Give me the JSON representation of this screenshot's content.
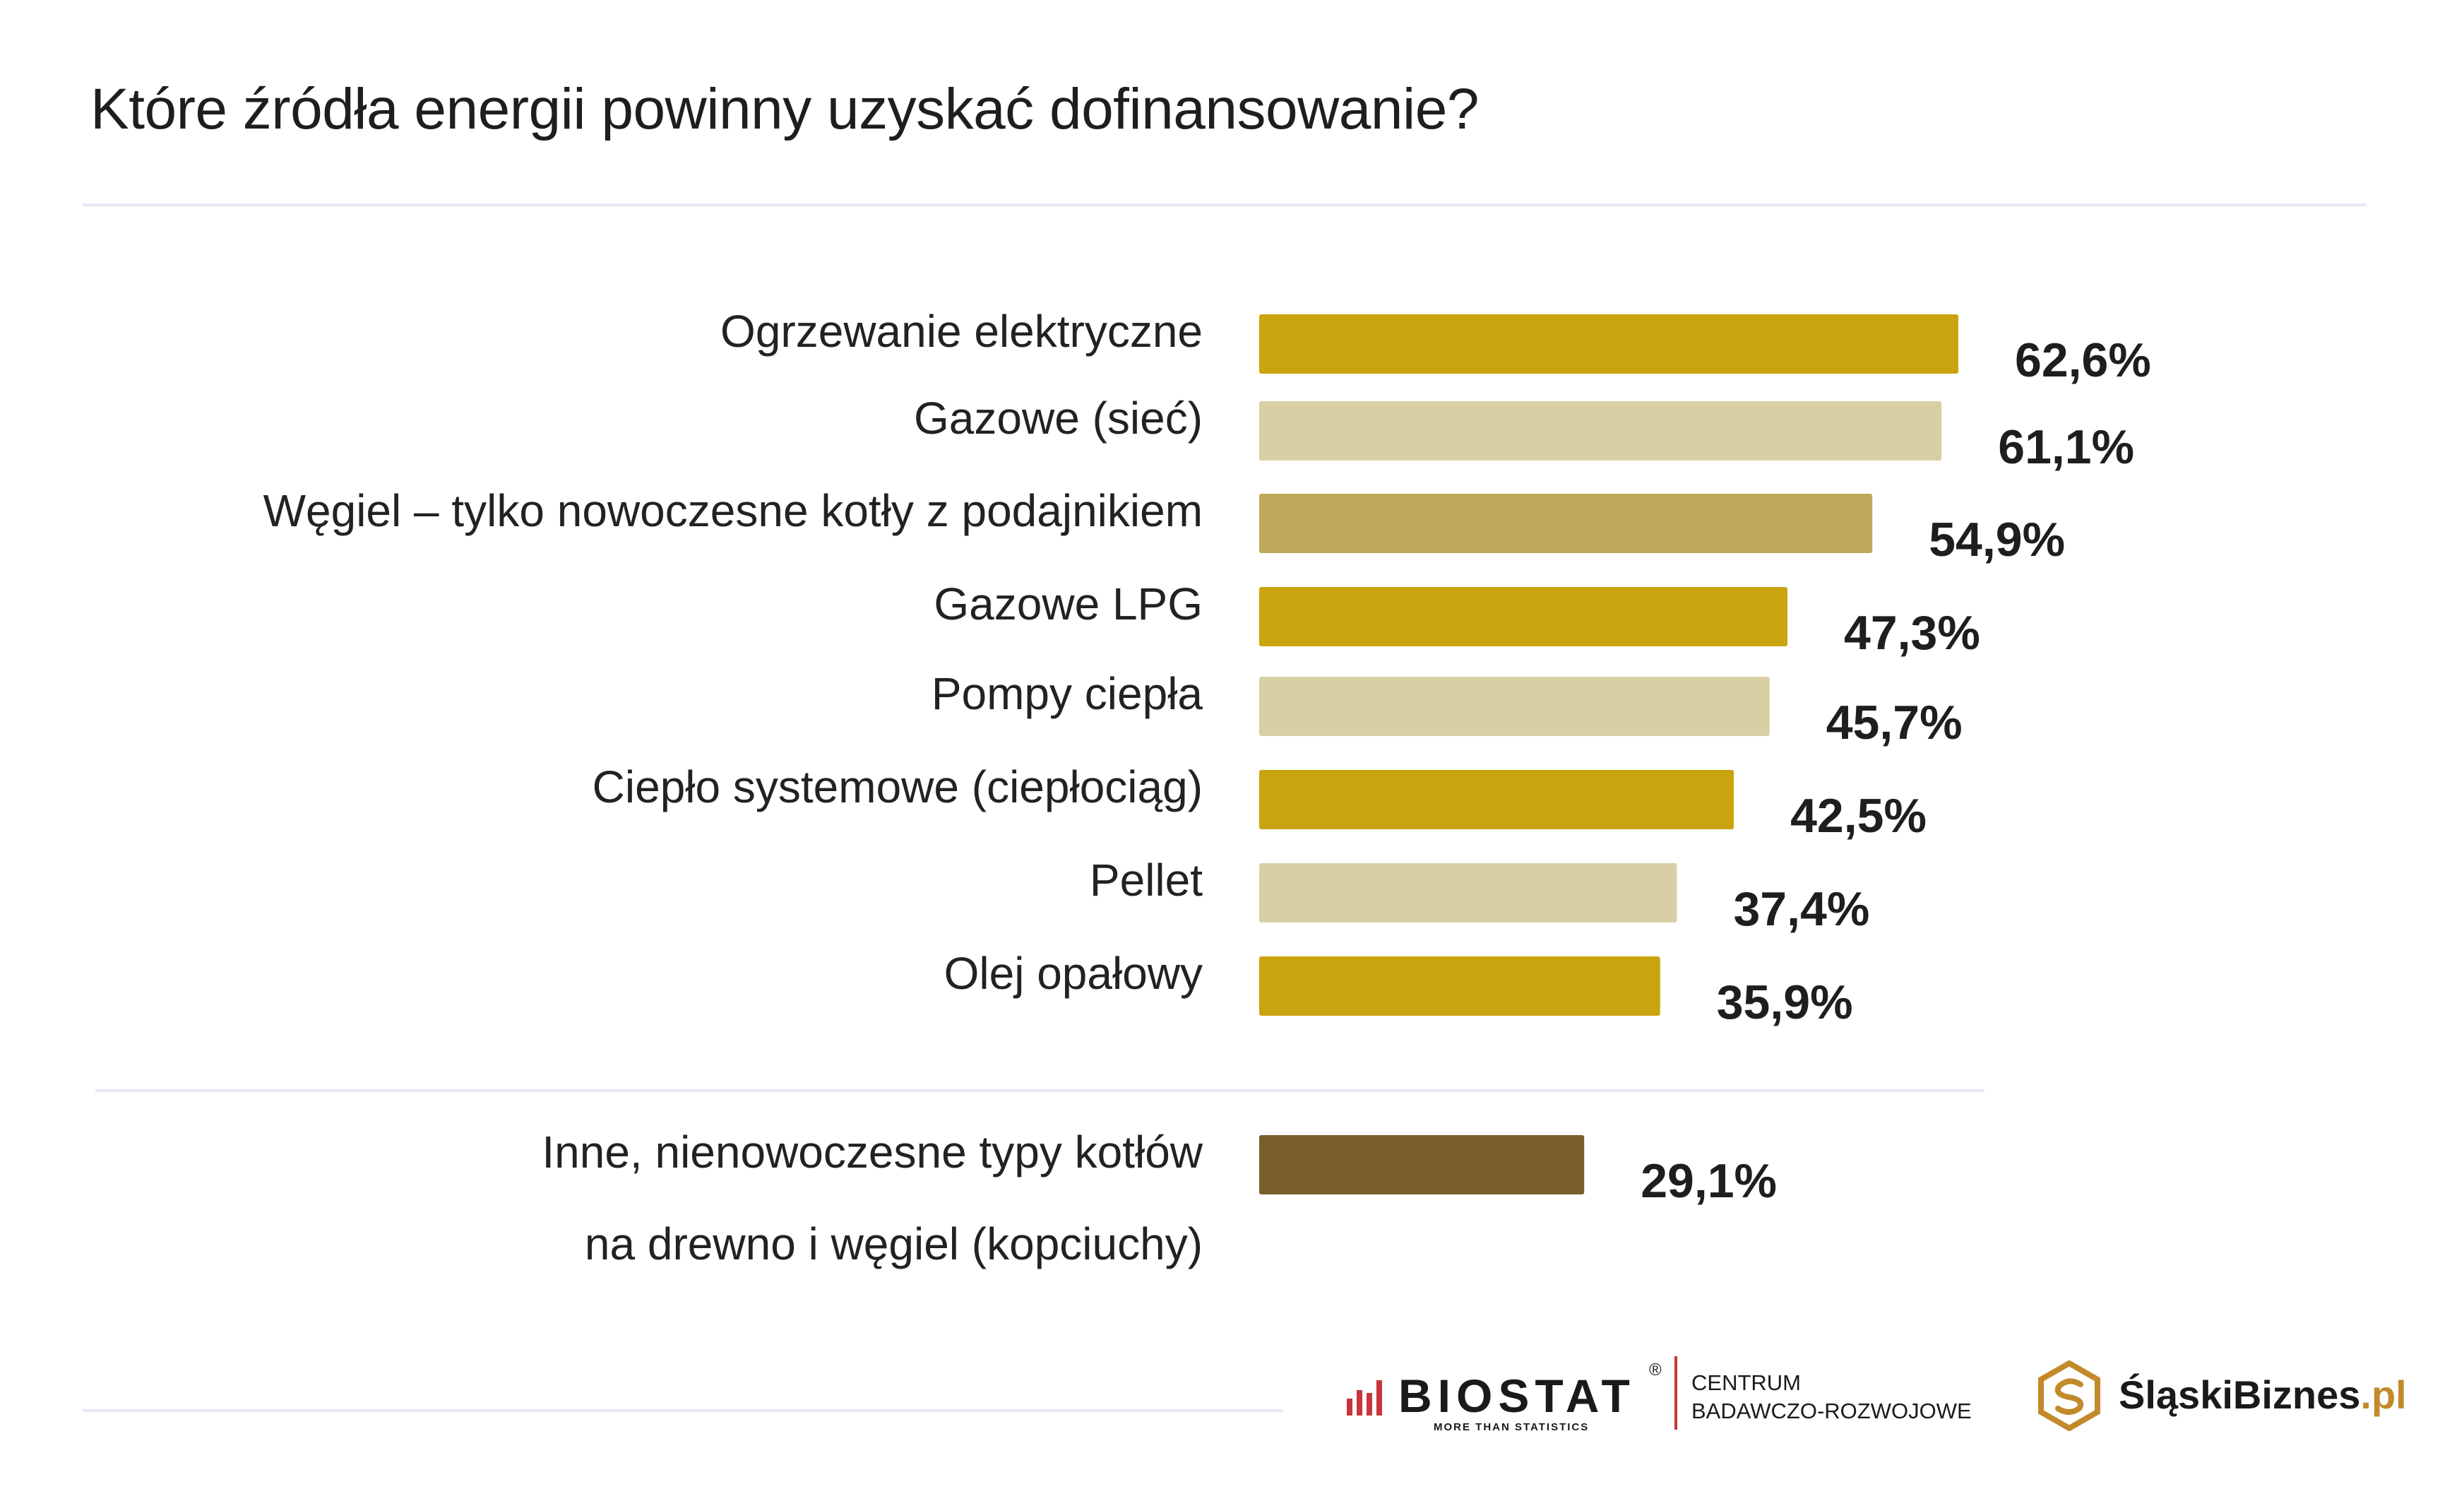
{
  "title": "Które źródła energii powinny uzyskać dofinansowanie?",
  "colors": {
    "gold": "#c9a40f",
    "beige": "#d9cfa4",
    "khaki": "#bfa85a",
    "brown": "#7a5f2b"
  },
  "chart_data": {
    "type": "bar",
    "orientation": "horizontal",
    "title": "Które źródła energii powinny uzyskać dofinansowanie?",
    "unit": "%",
    "categories": [
      "Ogrzewanie elektryczne",
      "Gazowe (sieć)",
      "Węgiel – tylko nowoczesne kotły z podajnikiem",
      "Gazowe LPG",
      "Pompy ciepła",
      "Ciepło systemowe (ciepłociąg)",
      "Pellet",
      "Olej opałowy",
      "Inne, nienowoczesne typy kotłów na drewno i węgiel (kopciuchy)"
    ],
    "label_lines": [
      [
        "Ogrzewanie elektryczne"
      ],
      [
        "Gazowe (sieć)"
      ],
      [
        "Węgiel – tylko nowoczesne kotły z podajnikiem"
      ],
      [
        "Gazowe LPG"
      ],
      [
        "Pompy ciepła"
      ],
      [
        "Ciepło systemowe (ciepłociąg)"
      ],
      [
        "Pellet"
      ],
      [
        "Olej opałowy"
      ],
      [
        "Inne, nienowoczesne typy kotłów",
        "na drewno i węgiel (kopciuchy)"
      ]
    ],
    "values": [
      62.6,
      61.1,
      54.9,
      47.3,
      45.7,
      42.5,
      37.4,
      35.9,
      29.1
    ],
    "value_labels": [
      "62,6%",
      "61,1%",
      "54,9%",
      "47,3%",
      "45,7%",
      "42,5%",
      "37,4%",
      "35,9%",
      "29,1%"
    ],
    "bar_colors": [
      "#c9a40f",
      "#d9cfa4",
      "#bfa85a",
      "#c9a40f",
      "#d9cfa4",
      "#c9a40f",
      "#d9cfa4",
      "#c9a40f",
      "#7a5f2b"
    ],
    "grid": false,
    "legend": "none"
  },
  "footer": {
    "biostat_name": "BIOSTAT",
    "biostat_reg": "®",
    "biostat_tagline": "MORE THAN STATISTICS",
    "centrum_line1": "CENTRUM",
    "centrum_line2": "BADAWCZO-ROZWOJOWE",
    "slaski_name": "ŚląskiBiznes",
    "slaski_suffix": ".pl"
  }
}
